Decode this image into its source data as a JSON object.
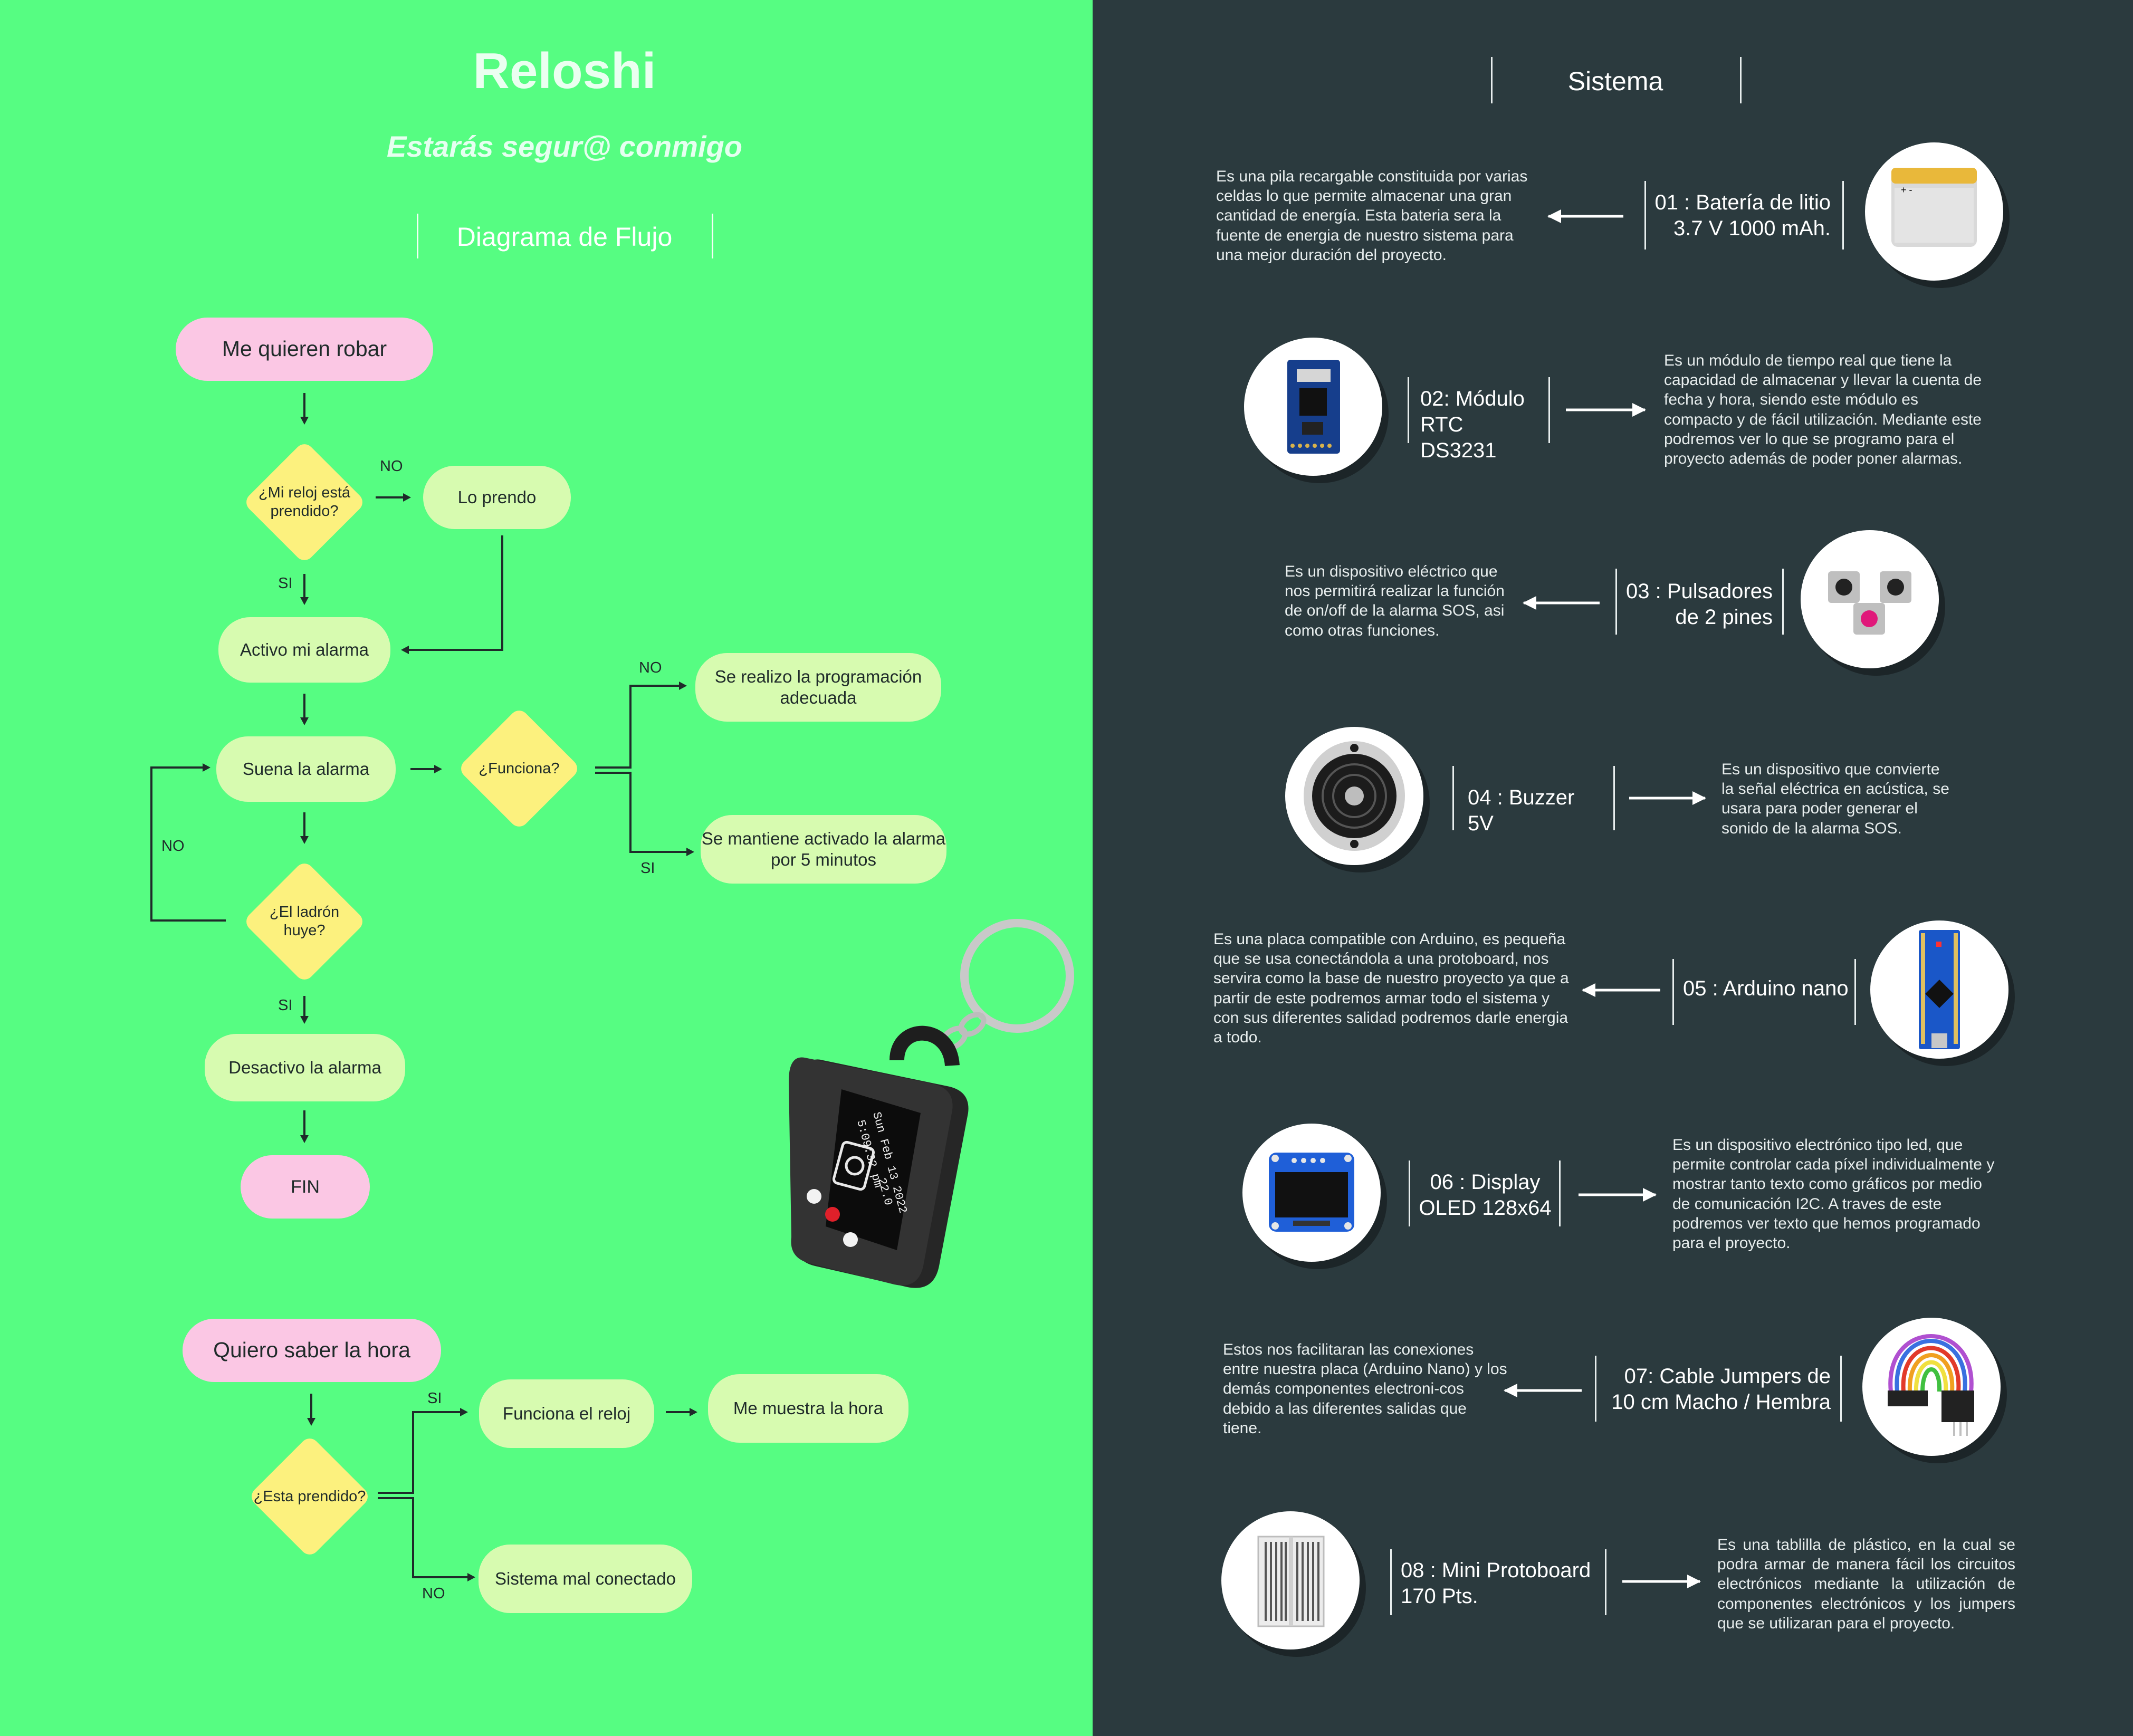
{
  "header": {
    "title": "Reloshi",
    "tagline": "Estarás segur@ conmigo",
    "flow_title": "Diagrama de Flujo",
    "system_title": "Sistema"
  },
  "flow1": {
    "start": "Me quieren robar",
    "q_on": "¿Mi reloj está prendido?",
    "turn_on": "Lo prendo",
    "activate": "Activo mi alarma",
    "ring": "Suena la alarma",
    "q_works": "¿Funciona?",
    "prog": "Se realizo la programación adecuada",
    "keep": "Se mantiene activado la alarma por 5 minutos",
    "q_flee": "¿El ladrón huye?",
    "deactivate": "Desactivo la alarma",
    "end": "FIN",
    "no": "NO",
    "si": "SI"
  },
  "flow2": {
    "start": "Quiero saber la hora",
    "q_on": "¿Esta prendido?",
    "works": "Funciona el reloj",
    "show": "Me muestra la hora",
    "bad": "Sistema mal conectado",
    "no": "NO",
    "si": "SI"
  },
  "device": {
    "screen_line1": "Sun Feb 13 2022",
    "screen_line2": "5:09:32 pm",
    "screen_line3": "22.0"
  },
  "system": {
    "items": [
      {
        "title": "01 : Batería de litio 3.7 V 1000 mAh.",
        "desc": "Es una pila recargable constituida por varias celdas lo que permite almacenar una gran cantidad de energía. Esta bateria sera la fuente de energia de nuestro sistema para una mejor duración del proyecto.",
        "icon": "battery-icon"
      },
      {
        "title": "02: Módulo RTC DS3231",
        "desc": "Es un módulo de tiempo real que tiene la capacidad de almacenar y llevar la cuenta de fecha y hora, siendo este módulo es compacto y de fácil utilización. Mediante este podremos ver lo que se programo para el proyecto además de poder poner alarmas.",
        "icon": "rtc-module-icon"
      },
      {
        "title": "03 : Pulsadores de 2 pines",
        "desc": "Es un dispositivo eléctrico que nos permitirá realizar la función de on/off de la alarma SOS, asi como otras funciones.",
        "icon": "push-buttons-icon"
      },
      {
        "title": "04 : Buzzer 5V",
        "desc": "Es un dispositivo que convierte la señal eléctrica en acústica, se usara para poder generar el sonido de la alarma SOS.",
        "icon": "buzzer-icon"
      },
      {
        "title": "05 : Arduino nano",
        "desc": "Es una placa compatible con Arduino, es pequeña que se usa conectándola a una protoboard, nos servira como la base de nuestro proyecto ya que a partir de este podremos armar todo el sistema y con sus diferentes salidad podremos darle energia a todo.",
        "icon": "arduino-nano-icon"
      },
      {
        "title": "06 : Display OLED 128x64",
        "desc": "Es un dispositivo electrónico tipo led, que permite controlar cada píxel individualmente y mostrar tanto texto como gráficos por medio de comunicación I2C. A traves de este podremos ver texto que hemos programado para el proyecto.",
        "icon": "oled-display-icon"
      },
      {
        "title": "07: Cable Jumpers de 10 cm Macho / Hembra",
        "desc": "Estos nos facilitaran las conexiones entre nuestra placa (Arduino Nano) y los demás componentes electroni-cos debido a las diferentes salidas que tiene.",
        "icon": "jumper-cables-icon"
      },
      {
        "title": "08 : Mini Protoboard 170 Pts.",
        "desc": "Es una tablilla de plástico, en la cual se podra armar de manera fácil los circuitos electrónicos mediante la utilización de componentes electrónicos y los jumpers que se utilizaran para el proyecto.",
        "icon": "protoboard-icon"
      }
    ]
  },
  "colors": {
    "left_bg": "#56fd82",
    "right_bg": "#2b3a3e",
    "start_pill": "#fbc7e4",
    "process_pill": "#d7fbb0",
    "decision": "#fcf17e",
    "connector": "#1f2b2a"
  }
}
